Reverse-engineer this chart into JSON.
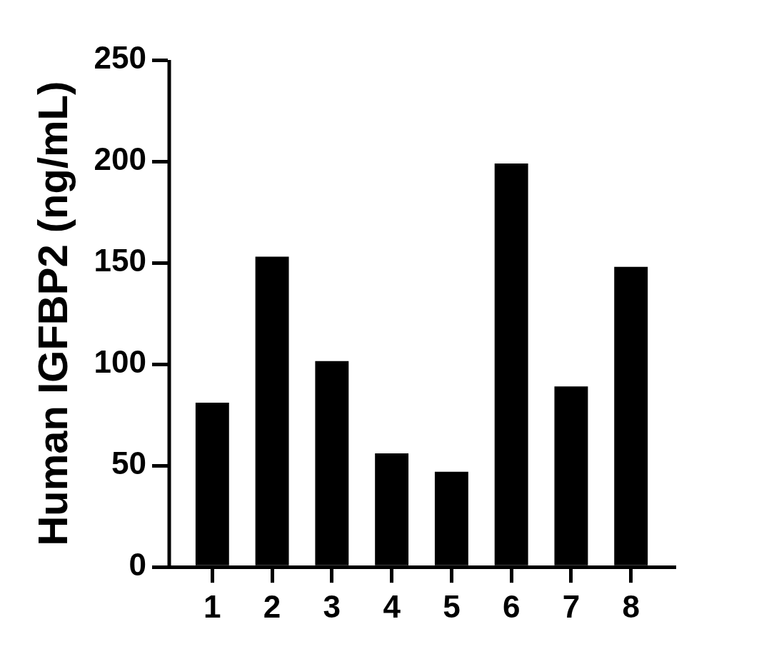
{
  "chart_data": {
    "type": "bar",
    "ylabel": "Human IGFBP2 (ng/mL)",
    "categories": [
      "1",
      "2",
      "3",
      "4",
      "5",
      "6",
      "7",
      "8"
    ],
    "values": [
      81,
      153,
      101.5,
      56,
      47,
      199,
      89,
      148
    ],
    "color": "#000000",
    "ylim": [
      0,
      250
    ],
    "yticks": [
      0,
      50,
      100,
      150,
      200,
      250
    ]
  }
}
